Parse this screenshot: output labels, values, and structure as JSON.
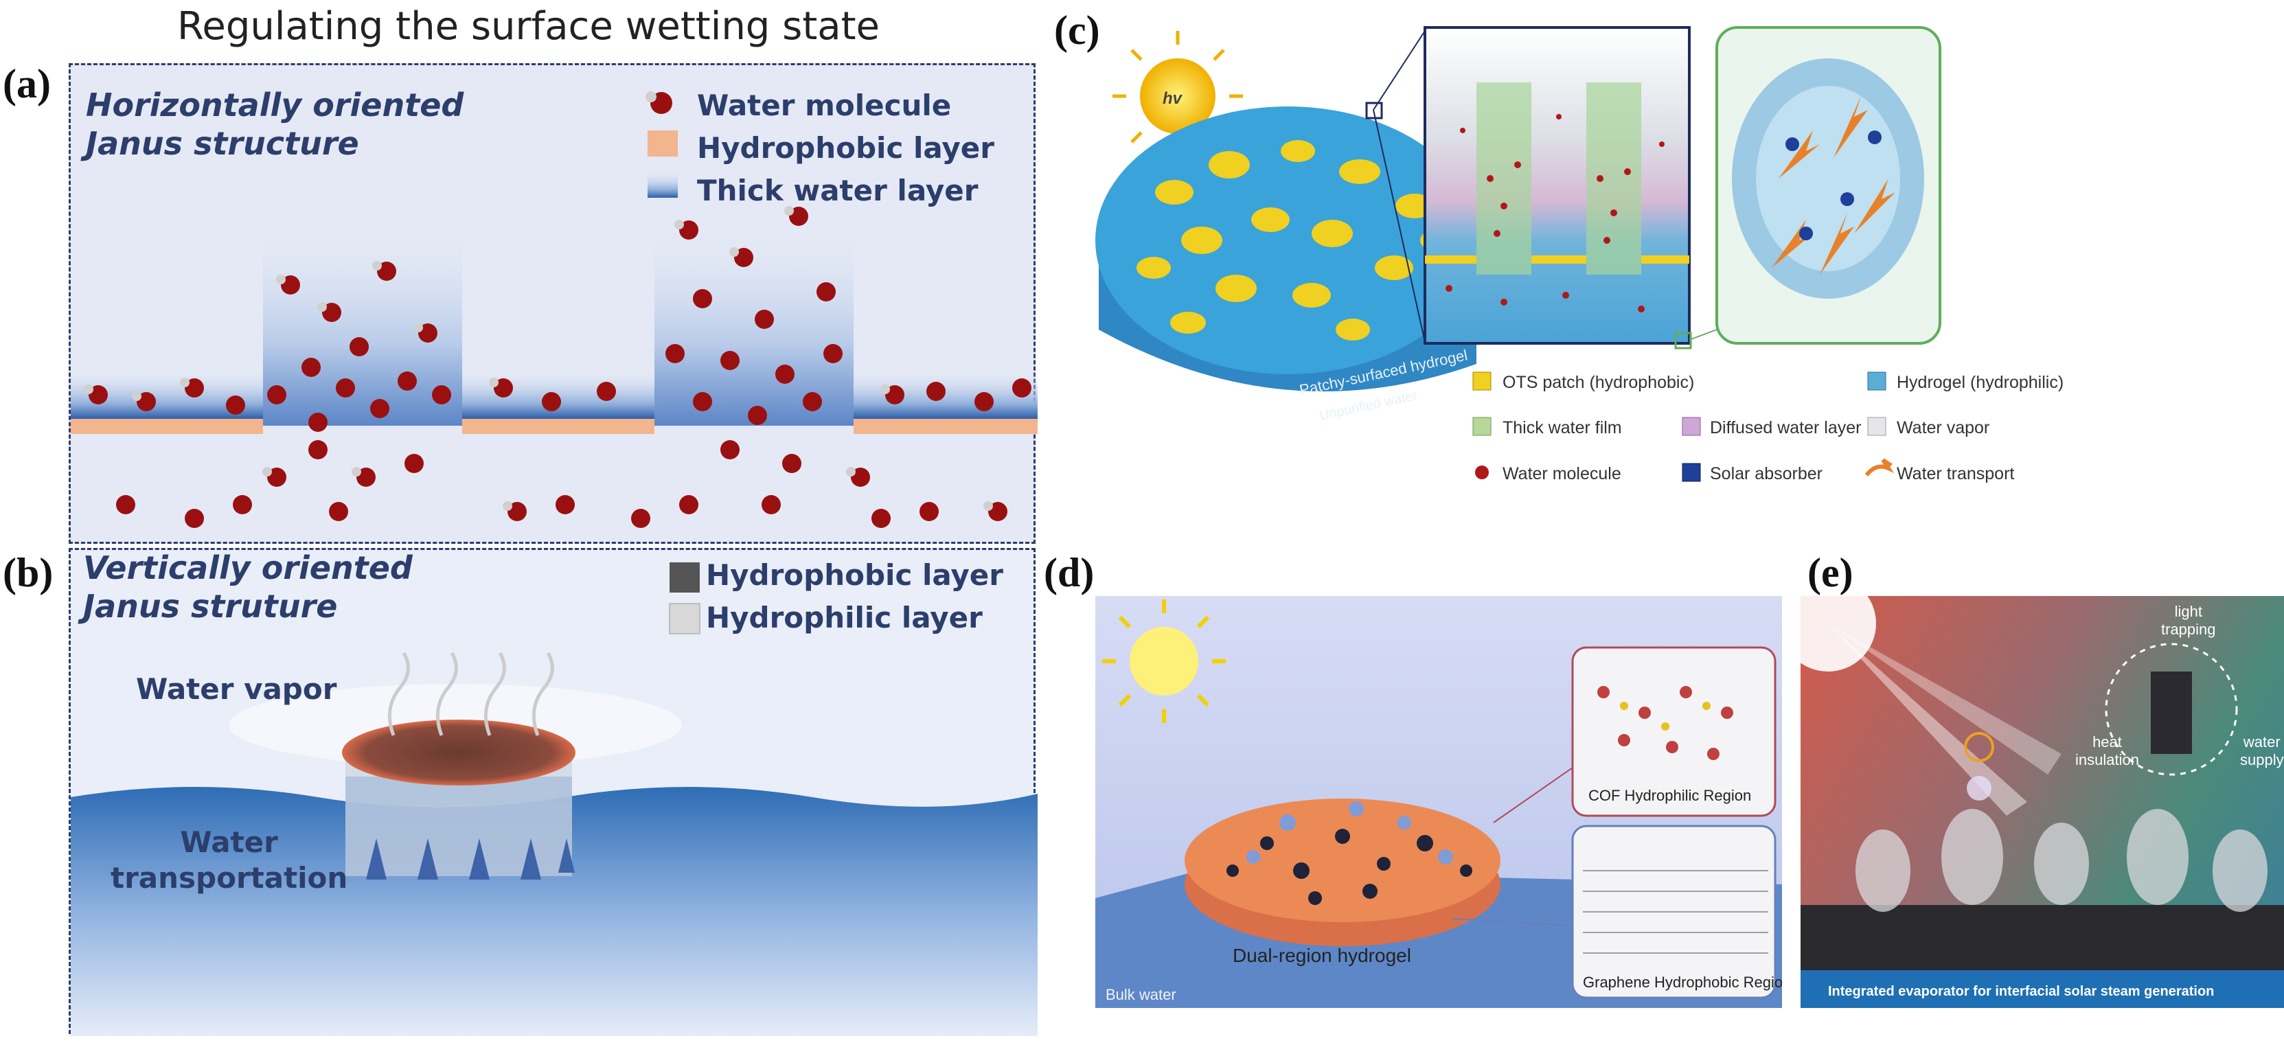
{
  "title": "Regulating the surface wetting state",
  "panels": {
    "a": {
      "label": "(a)",
      "heading_line1": "Horizontally oriented",
      "heading_line2": "Janus structure",
      "legend": [
        "Water molecule",
        "Hydrophobic layer",
        "Thick water layer"
      ]
    },
    "b": {
      "label": "(b)",
      "heading_line1": "Vertically oriented",
      "heading_line2": "Janus struture",
      "legend": [
        "Hydrophobic layer",
        "Hydrophilic layer"
      ],
      "vapor_label": "Water vapor",
      "transport_line1": "Water",
      "transport_line2": "transportation"
    },
    "c": {
      "label": "(c)",
      "sun_label": "hv",
      "disk_label": "Patchy-surfaced hydrogel",
      "water_label": "Unpurified water",
      "legend": [
        "OTS patch (hydrophobic)",
        "Hydrogel (hydrophilic)",
        "Thick water film",
        "Diffused water layer",
        "Water vapor",
        "Water molecule",
        "Solar absorber",
        "Water transport"
      ]
    },
    "d": {
      "label": "(d)",
      "cof_label": "COF Hydrophilic Region",
      "graphene_label": "Graphene Hydrophobic Region",
      "hydrogel_label": "Dual-region hydrogel",
      "bulk_label": "Bulk water"
    },
    "e": {
      "label": "(e)",
      "light_label_1": "light",
      "light_label_2": "trapping",
      "heat_label_1": "heat",
      "heat_label_2": "insulation",
      "water_label_1": "water",
      "water_label_2": "supply",
      "caption": "Integrated evaporator for interfacial solar steam generation"
    }
  },
  "colors": {
    "navy_text": "#2c3e6b",
    "hydrophobic_orange": "#f2b58d",
    "water_blue": "#2f6db5",
    "ots_yellow": "#f0d020",
    "molecule_red": "#9a1010"
  }
}
